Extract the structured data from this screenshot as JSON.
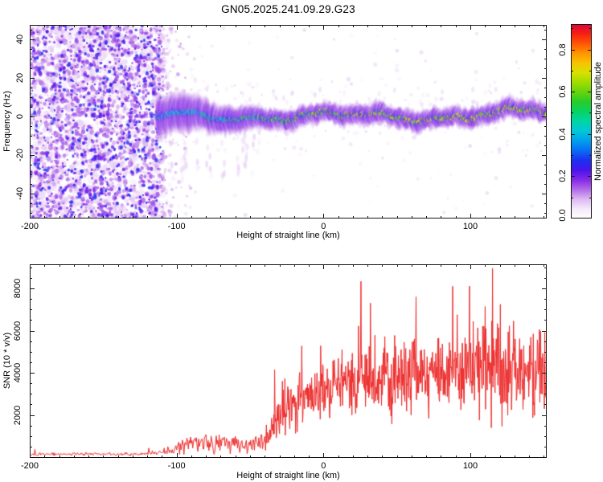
{
  "title": "GN05.2025.241.09.29.G23",
  "axes": {
    "x_label": "Height of straight line (km)",
    "top_y_label": "Frequency (Hz)",
    "bottom_y_label": "SNR (10 * v/v)",
    "colorbar_label": "Normalized spectral amplitude",
    "x_tick_labels": [
      "-200",
      "-100",
      "0",
      "100"
    ],
    "top_y_tick_labels": [
      "40",
      "20",
      "0",
      "-20",
      "-40"
    ],
    "bottom_y_tick_labels": [
      "2000",
      "4000",
      "6000",
      "8000"
    ],
    "colorbar_tick_labels": [
      "0.0",
      "0.2",
      "0.4",
      "0.6",
      "0.8"
    ]
  },
  "colors": {
    "snr_trace": "#ee2b2b",
    "frame": "#141414",
    "background": "#ffffff",
    "colormap_max": 0.92,
    "colormap_stops": [
      {
        "v": 0.0,
        "c": "#ffffff"
      },
      {
        "v": 0.046,
        "c": "#f4e9fa"
      },
      {
        "v": 0.092,
        "c": "#dcb8f2"
      },
      {
        "v": 0.138,
        "c": "#b06ae8"
      },
      {
        "v": 0.184,
        "c": "#8428e8"
      },
      {
        "v": 0.23,
        "c": "#4814ec"
      },
      {
        "v": 0.276,
        "c": "#1c30f0"
      },
      {
        "v": 0.322,
        "c": "#0a6cf4"
      },
      {
        "v": 0.368,
        "c": "#00a0ec"
      },
      {
        "v": 0.414,
        "c": "#00c8d8"
      },
      {
        "v": 0.46,
        "c": "#00d4a4"
      },
      {
        "v": 0.506,
        "c": "#06d462"
      },
      {
        "v": 0.552,
        "c": "#28cc28"
      },
      {
        "v": 0.598,
        "c": "#66d40e"
      },
      {
        "v": 0.644,
        "c": "#a0dc00"
      },
      {
        "v": 0.69,
        "c": "#d8e000"
      },
      {
        "v": 0.736,
        "c": "#f8c400"
      },
      {
        "v": 0.782,
        "c": "#ff9400"
      },
      {
        "v": 0.828,
        "c": "#ff5404"
      },
      {
        "v": 0.874,
        "c": "#f42014"
      },
      {
        "v": 0.92,
        "c": "#e00438"
      }
    ]
  },
  "chart_data": [
    {
      "type": "heatmap",
      "title": "GN05.2025.241.09.29.G23",
      "xlabel": "Height of straight line (km)",
      "ylabel": "Frequency (Hz)",
      "xlim": [
        -200,
        152
      ],
      "ylim": [
        -50,
        50
      ],
      "xticks": [
        -200,
        -100,
        0,
        100
      ],
      "xtick_minor_step": 10,
      "yticks": [
        40,
        20,
        0,
        -20,
        -40
      ],
      "ytick_minor_step": 5,
      "grid": false,
      "colorbar": {
        "label": "Normalized spectral amplitude",
        "ticks": [
          0.0,
          0.2,
          0.4,
          0.6,
          0.8
        ],
        "minor_step": 0.1,
        "range": [
          0.0,
          0.92
        ]
      },
      "features": {
        "noise_region": {
          "x_start_km": -200,
          "x_end_km": -112,
          "amplitude_range": [
            0.02,
            0.3
          ],
          "description": "dense purple speckle noise covering all frequencies"
        },
        "signal_band": {
          "x_start_km": -112,
          "x_end_km": 152,
          "center_freq_hz": 0,
          "center_wiggle_hz": 3,
          "halfwidth_hz_start": 11,
          "halfwidth_hz_end": 5,
          "core_amp_x_km": [
            -112,
            -60,
            -35,
            -15,
            50,
            152
          ],
          "core_amp": [
            0.36,
            0.48,
            0.55,
            0.6,
            0.64,
            0.66
          ],
          "hot_spot_amp": [
            0.78,
            0.92
          ],
          "description": "narrow carrier band near 0 Hz; core amplitude rises from cyan/green near -110 km to frequent red/orange above -25 km"
        }
      }
    },
    {
      "type": "line",
      "xlabel": "Height of straight line (km)",
      "ylabel": "SNR (10 * v/v)",
      "xlim": [
        -200,
        152
      ],
      "ylim": [
        0,
        9140
      ],
      "xticks": [
        -200,
        -100,
        0,
        100
      ],
      "xtick_minor_step": 10,
      "yticks": [
        2000,
        4000,
        6000,
        8000
      ],
      "ytick_minor_step": 500,
      "grid": false,
      "series_color": "#ee2b2b",
      "x_km": [
        -200,
        -190,
        -180,
        -170,
        -160,
        -150,
        -140,
        -130,
        -120,
        -110,
        -100,
        -90,
        -80,
        -70,
        -60,
        -50,
        -40,
        -30,
        -20,
        -10,
        0,
        10,
        20,
        30,
        40,
        50,
        60,
        70,
        80,
        90,
        100,
        110,
        120,
        130,
        140,
        150
      ],
      "mean_snr": [
        140,
        140,
        140,
        140,
        140,
        140,
        140,
        140,
        145,
        260,
        380,
        750,
        600,
        650,
        600,
        500,
        900,
        2000,
        2500,
        2800,
        3100,
        3300,
        3500,
        3600,
        3700,
        3800,
        4000,
        4100,
        4300,
        4350,
        4450,
        4600,
        4300,
        4250,
        4050,
        3900
      ],
      "noise_amp_x_km": [
        -200,
        -115,
        -110,
        -100,
        -90,
        -80,
        -60,
        -50,
        -40,
        -30,
        -20,
        -10,
        0,
        20,
        40,
        60,
        80,
        100,
        115,
        130,
        150
      ],
      "noise_amp": [
        70,
        75,
        150,
        300,
        420,
        420,
        380,
        350,
        600,
        900,
        1100,
        1250,
        1350,
        1500,
        1600,
        1700,
        1850,
        1950,
        2100,
        1950,
        1850
      ],
      "spikes": [
        {
          "x_km": 115,
          "snr": 8950
        },
        {
          "x_km": 88,
          "snr": 8100
        },
        {
          "x_km": 63,
          "snr": 7600
        },
        {
          "x_km": 32,
          "snr": 7300
        }
      ],
      "noise_floor": 140
    }
  ]
}
